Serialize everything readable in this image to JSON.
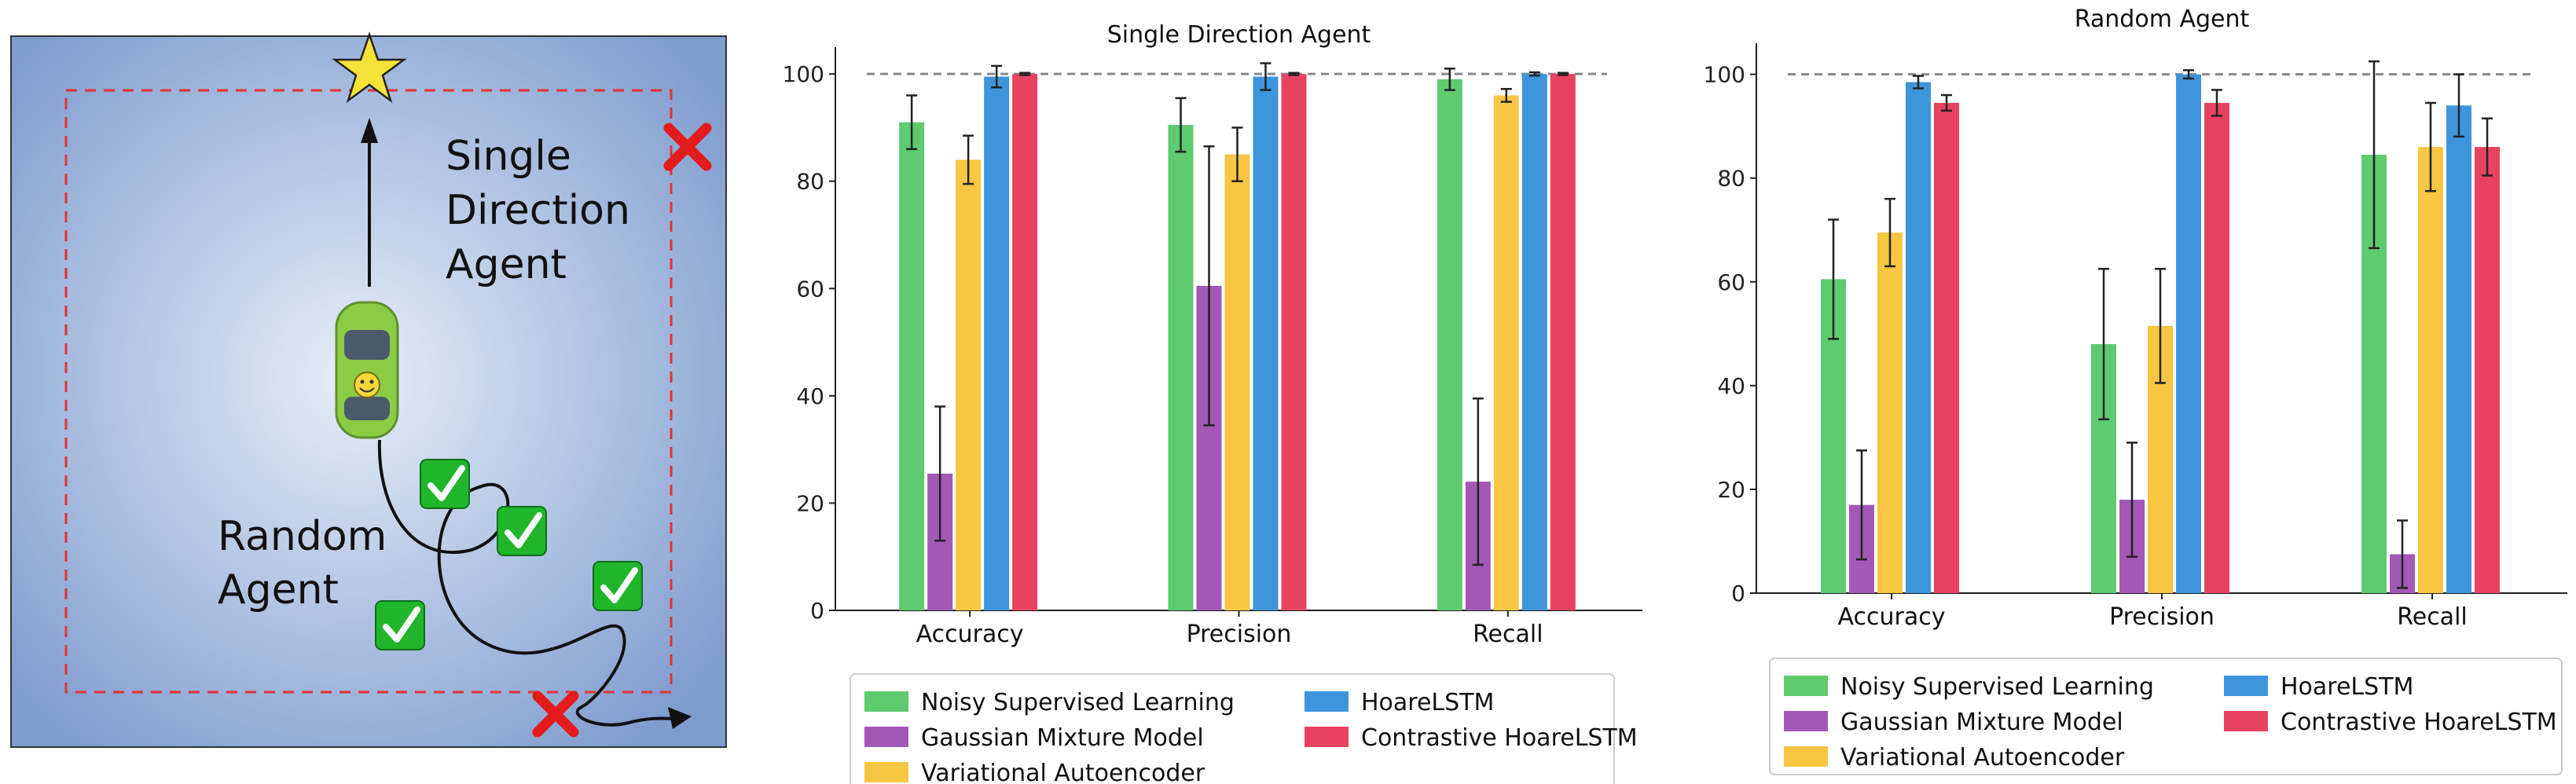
{
  "scene": {
    "labels": {
      "single_direction": [
        "Single",
        "Direction",
        "Agent"
      ],
      "random": [
        "Random",
        "Agent"
      ]
    },
    "colors": {
      "background_center": "#e6eef8",
      "background_edge": "#7f9ccf",
      "boundary": "#e53030",
      "star": "#f7e23a",
      "car": "#8ccc45",
      "check": "#20b52a",
      "cross": "#e41b1b"
    },
    "icons": [
      "star-icon",
      "car-icon",
      "check-icon",
      "cross-icon",
      "arrow-icon"
    ]
  },
  "legend": {
    "entries": [
      {
        "name": "Noisy Supervised Learning",
        "color": "#5ecb6f"
      },
      {
        "name": "Gaussian Mixture Model",
        "color": "#a358b6"
      },
      {
        "name": "Variational Autoencoder",
        "color": "#f7c642"
      },
      {
        "name": "HoareLSTM",
        "color": "#3f95db"
      },
      {
        "name": "Contrastive HoareLSTM",
        "color": "#e84261"
      }
    ]
  },
  "chart_data": [
    {
      "type": "bar",
      "title": "Single Direction Agent",
      "categories": [
        "Accuracy",
        "Precision",
        "Recall"
      ],
      "ylim": [
        0,
        105
      ],
      "yticks": [
        0,
        20,
        40,
        60,
        80,
        100
      ],
      "reference_line": 100,
      "grid": false,
      "legend_position": "bottom",
      "series": [
        {
          "name": "Noisy Supervised Learning",
          "values": [
            91,
            90.5,
            99
          ],
          "errors": [
            5,
            5,
            2
          ]
        },
        {
          "name": "Gaussian Mixture Model",
          "values": [
            25.5,
            60.5,
            24
          ],
          "errors": [
            12.5,
            26,
            15.5
          ]
        },
        {
          "name": "Variational Autoencoder",
          "values": [
            84,
            85,
            96
          ],
          "errors": [
            4.5,
            5,
            1.2
          ]
        },
        {
          "name": "HoareLSTM",
          "values": [
            99.5,
            99.5,
            100
          ],
          "errors": [
            2,
            2.5,
            0.3
          ]
        },
        {
          "name": "Contrastive HoareLSTM",
          "values": [
            100,
            100,
            100
          ],
          "errors": [
            0.2,
            0.2,
            0.2
          ]
        }
      ]
    },
    {
      "type": "bar",
      "title": "Random Agent",
      "categories": [
        "Accuracy",
        "Precision",
        "Recall"
      ],
      "ylim": [
        0,
        106
      ],
      "yticks": [
        0,
        20,
        40,
        60,
        80,
        100
      ],
      "reference_line": 100,
      "grid": false,
      "legend_position": "bottom",
      "series": [
        {
          "name": "Noisy Supervised Learning",
          "values": [
            60.5,
            48,
            84.5
          ],
          "errors": [
            11.5,
            14.5,
            18
          ]
        },
        {
          "name": "Gaussian Mixture Model",
          "values": [
            17,
            18,
            7.5
          ],
          "errors": [
            10.5,
            11,
            6.5
          ]
        },
        {
          "name": "Variational Autoencoder",
          "values": [
            69.5,
            51.5,
            86
          ],
          "errors": [
            6.5,
            11,
            8.5
          ]
        },
        {
          "name": "HoareLSTM",
          "values": [
            98.5,
            100,
            94
          ],
          "errors": [
            1.2,
            0.8,
            6
          ]
        },
        {
          "name": "Contrastive HoareLSTM",
          "values": [
            94.5,
            94.5,
            86
          ],
          "errors": [
            1.5,
            2.5,
            5.5
          ]
        }
      ]
    }
  ]
}
